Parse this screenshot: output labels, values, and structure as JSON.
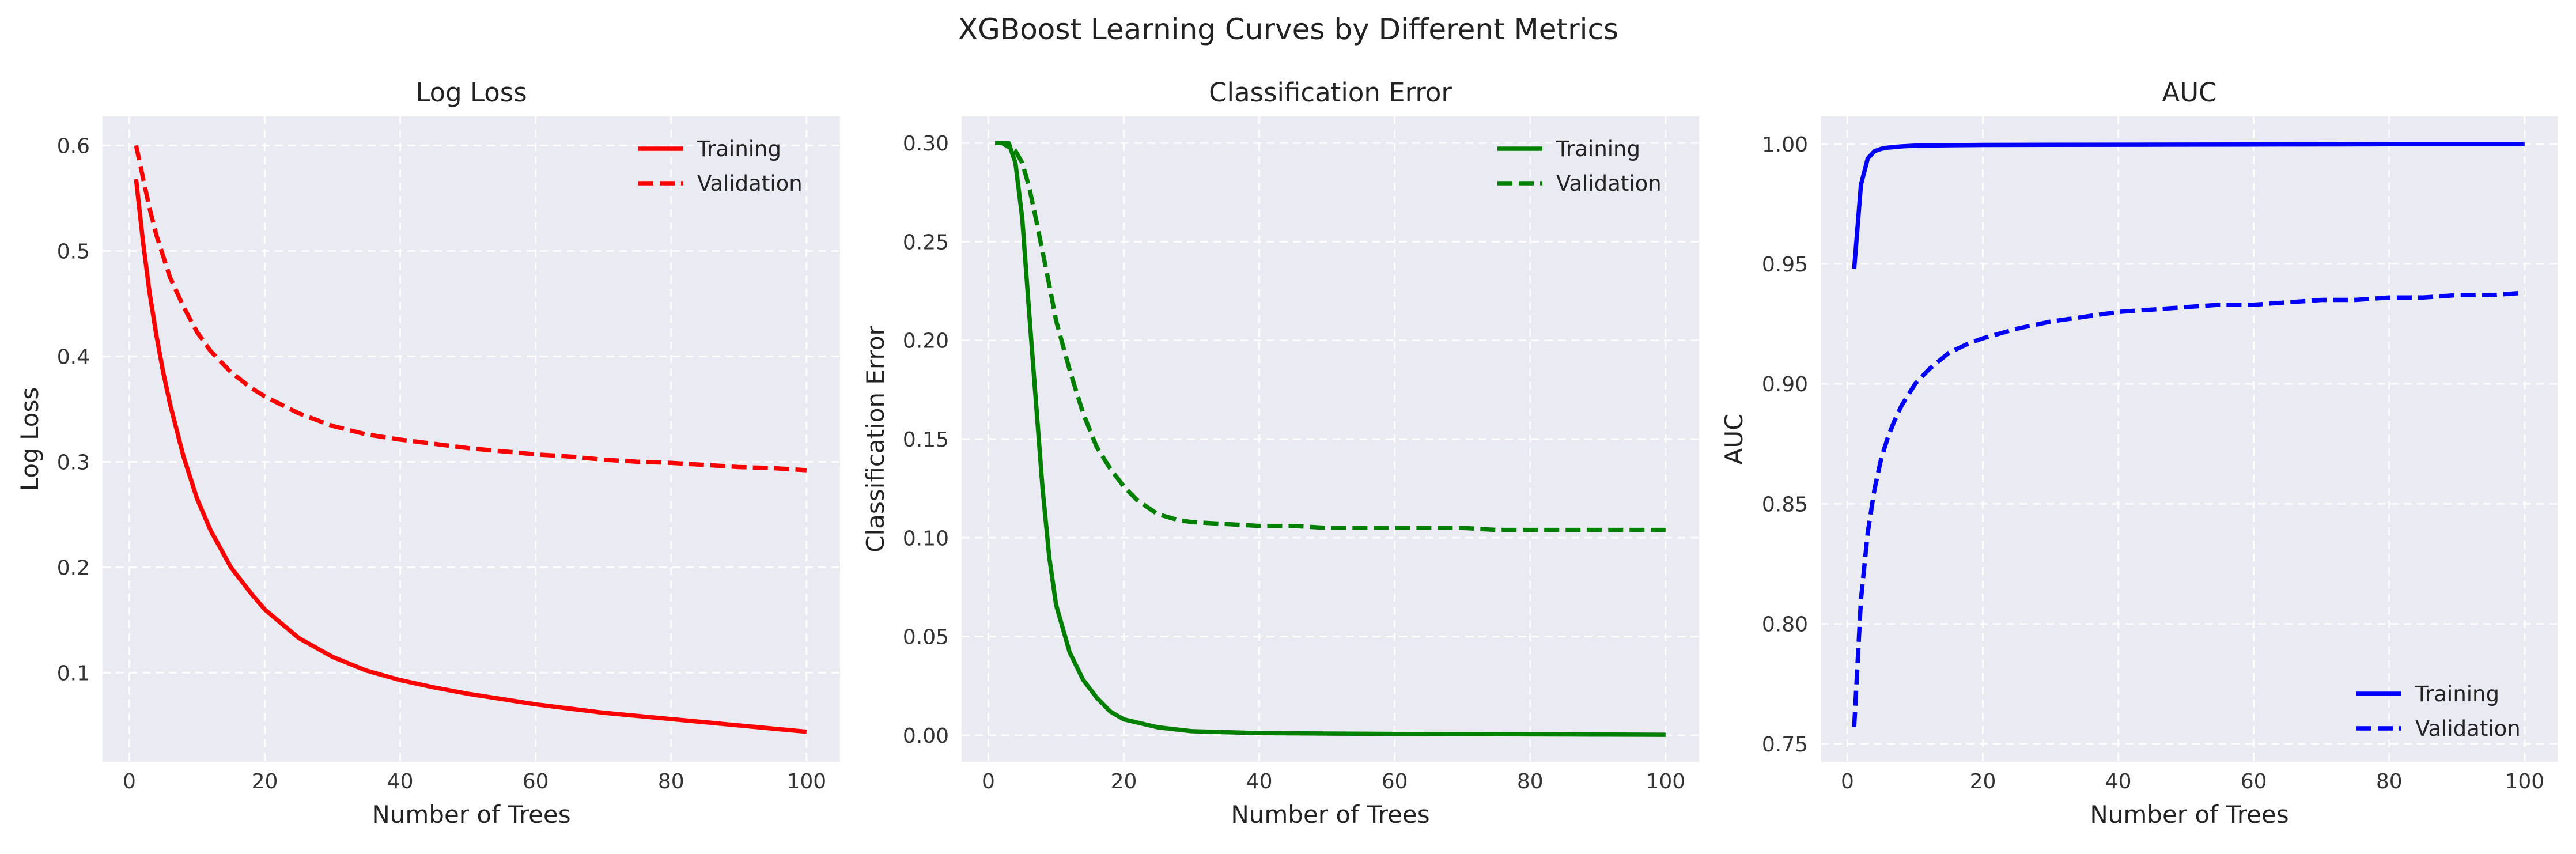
{
  "suptitle": "XGBoost Learning Curves by Different Metrics",
  "chart_data": [
    {
      "type": "line",
      "title": "Log Loss",
      "xlabel": "Number of Trees",
      "ylabel": "Log Loss",
      "xlim": [
        -3.95,
        104.95
      ],
      "ylim": [
        0.0155,
        0.6275
      ],
      "xticks": [
        0,
        20,
        40,
        60,
        80,
        100
      ],
      "yticks": [
        0.1,
        0.2,
        0.3,
        0.4,
        0.5,
        0.6
      ],
      "ytick_labels": [
        "0.1",
        "0.2",
        "0.3",
        "0.4",
        "0.5",
        "0.6"
      ],
      "grid": true,
      "legend_position": "upper right",
      "color": "#ff0000",
      "series": [
        {
          "name": "Training",
          "style": "solid",
          "x": [
            1,
            2,
            3,
            4,
            5,
            6,
            8,
            10,
            12,
            15,
            18,
            20,
            25,
            30,
            35,
            40,
            45,
            50,
            55,
            60,
            65,
            70,
            75,
            80,
            85,
            90,
            95,
            100
          ],
          "y": [
            0.568,
            0.51,
            0.46,
            0.42,
            0.385,
            0.355,
            0.305,
            0.265,
            0.235,
            0.2,
            0.175,
            0.16,
            0.133,
            0.115,
            0.102,
            0.093,
            0.086,
            0.08,
            0.075,
            0.07,
            0.066,
            0.062,
            0.059,
            0.056,
            0.053,
            0.05,
            0.047,
            0.044
          ]
        },
        {
          "name": "Validation",
          "style": "dashed",
          "x": [
            1,
            2,
            3,
            4,
            5,
            6,
            8,
            10,
            12,
            15,
            18,
            20,
            25,
            30,
            35,
            40,
            45,
            50,
            55,
            60,
            65,
            70,
            75,
            80,
            85,
            90,
            95,
            100
          ],
          "y": [
            0.6,
            0.57,
            0.54,
            0.515,
            0.495,
            0.475,
            0.447,
            0.423,
            0.405,
            0.385,
            0.37,
            0.362,
            0.346,
            0.334,
            0.326,
            0.321,
            0.317,
            0.313,
            0.31,
            0.307,
            0.305,
            0.302,
            0.3,
            0.299,
            0.297,
            0.295,
            0.294,
            0.292
          ]
        }
      ]
    },
    {
      "type": "line",
      "title": "Classification Error",
      "xlabel": "Number of Trees",
      "ylabel": "Classification Error",
      "xlim": [
        -3.95,
        104.95
      ],
      "ylim": [
        -0.0135,
        0.3135
      ],
      "xticks": [
        0,
        20,
        40,
        60,
        80,
        100
      ],
      "yticks": [
        0.0,
        0.05,
        0.1,
        0.15,
        0.2,
        0.25,
        0.3
      ],
      "ytick_labels": [
        "0.00",
        "0.05",
        "0.10",
        "0.15",
        "0.20",
        "0.25",
        "0.30"
      ],
      "grid": true,
      "legend_position": "upper right",
      "color": "#007f00",
      "series": [
        {
          "name": "Training",
          "style": "solid",
          "x": [
            1,
            2,
            3,
            4,
            5,
            6,
            7,
            8,
            9,
            10,
            12,
            14,
            16,
            18,
            20,
            25,
            30,
            35,
            40,
            50,
            60,
            70,
            80,
            90,
            100
          ],
          "y": [
            0.3,
            0.3,
            0.3,
            0.29,
            0.262,
            0.215,
            0.17,
            0.125,
            0.09,
            0.066,
            0.042,
            0.028,
            0.019,
            0.012,
            0.008,
            0.004,
            0.002,
            0.0015,
            0.001,
            0.0008,
            0.0006,
            0.0005,
            0.0004,
            0.0003,
            0.0002
          ]
        },
        {
          "name": "Validation",
          "style": "dashed",
          "x": [
            1,
            2,
            3,
            4,
            5,
            6,
            7,
            8,
            9,
            10,
            12,
            14,
            16,
            18,
            20,
            22,
            25,
            28,
            30,
            35,
            40,
            45,
            50,
            55,
            60,
            65,
            70,
            75,
            80,
            85,
            90,
            95,
            100
          ],
          "y": [
            0.3,
            0.3,
            0.298,
            0.296,
            0.29,
            0.278,
            0.262,
            0.245,
            0.228,
            0.21,
            0.185,
            0.163,
            0.146,
            0.135,
            0.126,
            0.119,
            0.112,
            0.109,
            0.108,
            0.107,
            0.106,
            0.106,
            0.105,
            0.105,
            0.105,
            0.105,
            0.105,
            0.104,
            0.104,
            0.104,
            0.104,
            0.104,
            0.104
          ]
        }
      ]
    },
    {
      "type": "line",
      "title": "AUC",
      "xlabel": "Number of Trees",
      "ylabel": "AUC",
      "xlim": [
        -3.95,
        104.95
      ],
      "ylim": [
        0.7425,
        1.0115
      ],
      "xticks": [
        0,
        20,
        40,
        60,
        80,
        100
      ],
      "yticks": [
        0.75,
        0.8,
        0.85,
        0.9,
        0.95,
        1.0
      ],
      "ytick_labels": [
        "0.75",
        "0.80",
        "0.85",
        "0.90",
        "0.95",
        "1.00"
      ],
      "grid": true,
      "legend_position": "lower right",
      "color": "#0000ff",
      "series": [
        {
          "name": "Training",
          "style": "solid",
          "x": [
            1,
            2,
            3,
            4,
            5,
            6,
            8,
            10,
            15,
            20,
            40,
            60,
            80,
            100
          ],
          "y": [
            0.948,
            0.983,
            0.994,
            0.997,
            0.998,
            0.9985,
            0.999,
            0.9993,
            0.9995,
            0.9996,
            0.9997,
            0.9998,
            0.9999,
            0.9999
          ]
        },
        {
          "name": "Validation",
          "style": "dashed",
          "x": [
            1,
            2,
            3,
            4,
            5,
            6,
            7,
            8,
            10,
            12,
            15,
            18,
            20,
            25,
            30,
            35,
            40,
            45,
            50,
            55,
            60,
            65,
            70,
            75,
            80,
            85,
            90,
            95,
            100
          ],
          "y": [
            0.757,
            0.81,
            0.838,
            0.856,
            0.869,
            0.878,
            0.885,
            0.891,
            0.9,
            0.906,
            0.913,
            0.917,
            0.919,
            0.923,
            0.926,
            0.928,
            0.93,
            0.931,
            0.932,
            0.933,
            0.933,
            0.934,
            0.935,
            0.935,
            0.936,
            0.936,
            0.937,
            0.937,
            0.938
          ]
        }
      ]
    }
  ]
}
